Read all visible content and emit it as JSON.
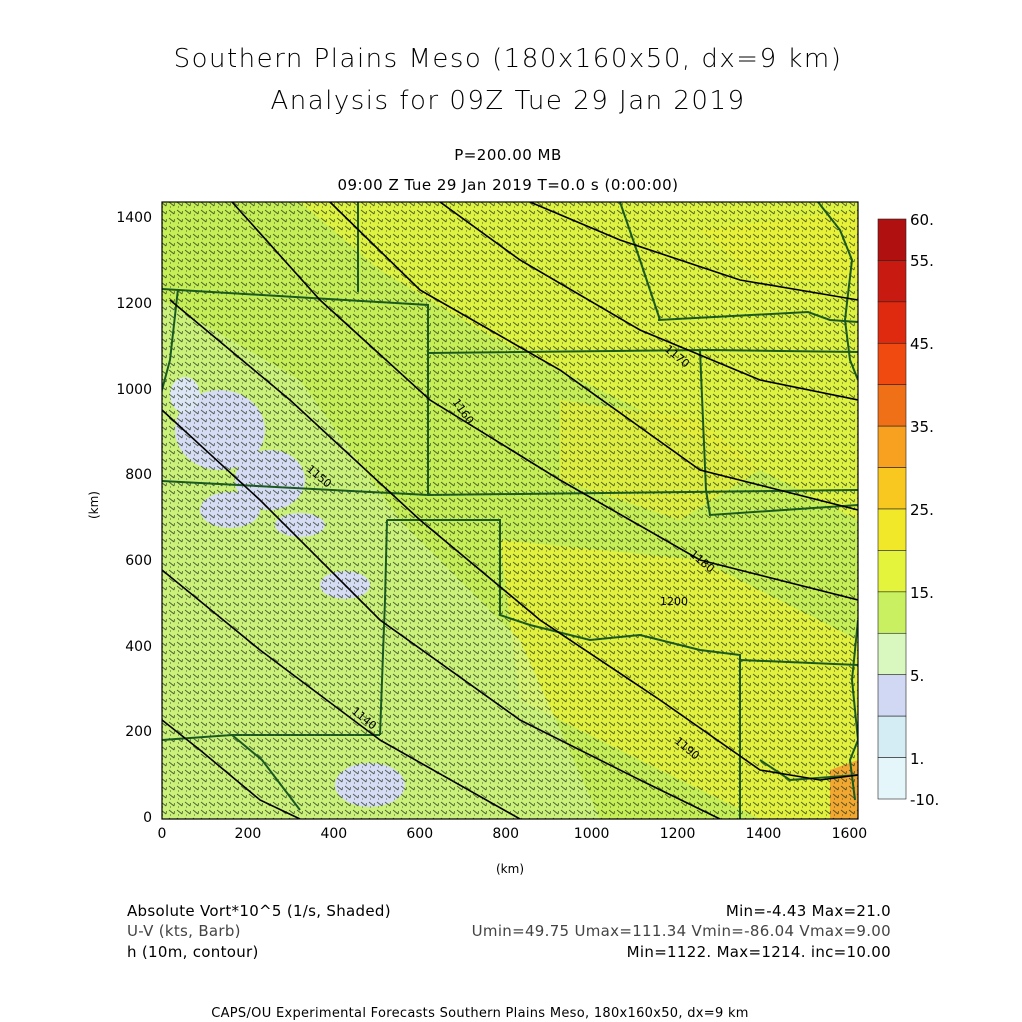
{
  "title": {
    "line1": "Southern Plains Meso (180x160x50, dx=9 km)",
    "line2": "Analysis for 09Z Tue 29 Jan 2019"
  },
  "subtitle": {
    "level": "P=200.00 MB",
    "time": "09:00 Z Tue 29 Jan 2019    T=0.0 s (0:00:00)"
  },
  "axes": {
    "x_unit": "(km)",
    "y_unit": "(km)",
    "x_ticks": [
      "0",
      "200",
      "400",
      "600",
      "800",
      "1000",
      "1200",
      "1400",
      "1600"
    ],
    "y_ticks": [
      "0",
      "200",
      "400",
      "600",
      "800",
      "1000",
      "1200",
      "1400"
    ],
    "x_range": [
      0,
      1620
    ],
    "y_range": [
      0,
      1440
    ]
  },
  "colorbar": {
    "labels": [
      "60.",
      "55.",
      "45.",
      "35.",
      "25.",
      "15.",
      "5.",
      "1.",
      "-10."
    ],
    "colors": [
      "#b01010",
      "#c81a10",
      "#e02a10",
      "#f04a10",
      "#f07018",
      "#f8a020",
      "#f8c820",
      "#f0e828",
      "#e4f43c",
      "#c8f060",
      "#d8f8c0",
      "#d0d8f4",
      "#d4ecf4",
      "#e4f6fa"
    ]
  },
  "contours": {
    "labels": [
      "1140",
      "1150",
      "1160",
      "1170",
      "1180",
      "1190",
      "1200"
    ]
  },
  "legend": {
    "field1": "Absolute Vort*10^5 (1/s, Shaded)",
    "field1_stats": "Min=-4.43 Max=21.0",
    "field2": "U-V (kts, Barb)",
    "field2_stats": "Umin=49.75 Umax=111.34 Vmin=-86.04 Vmax=9.00",
    "field3": "h (10m, contour)",
    "field3_stats": "Min=1122. Max=1214. inc=10.00"
  },
  "footer": "CAPS/OU Experimental Forecasts  Southern Plains Meso, 180x160x50, dx=9 km"
}
